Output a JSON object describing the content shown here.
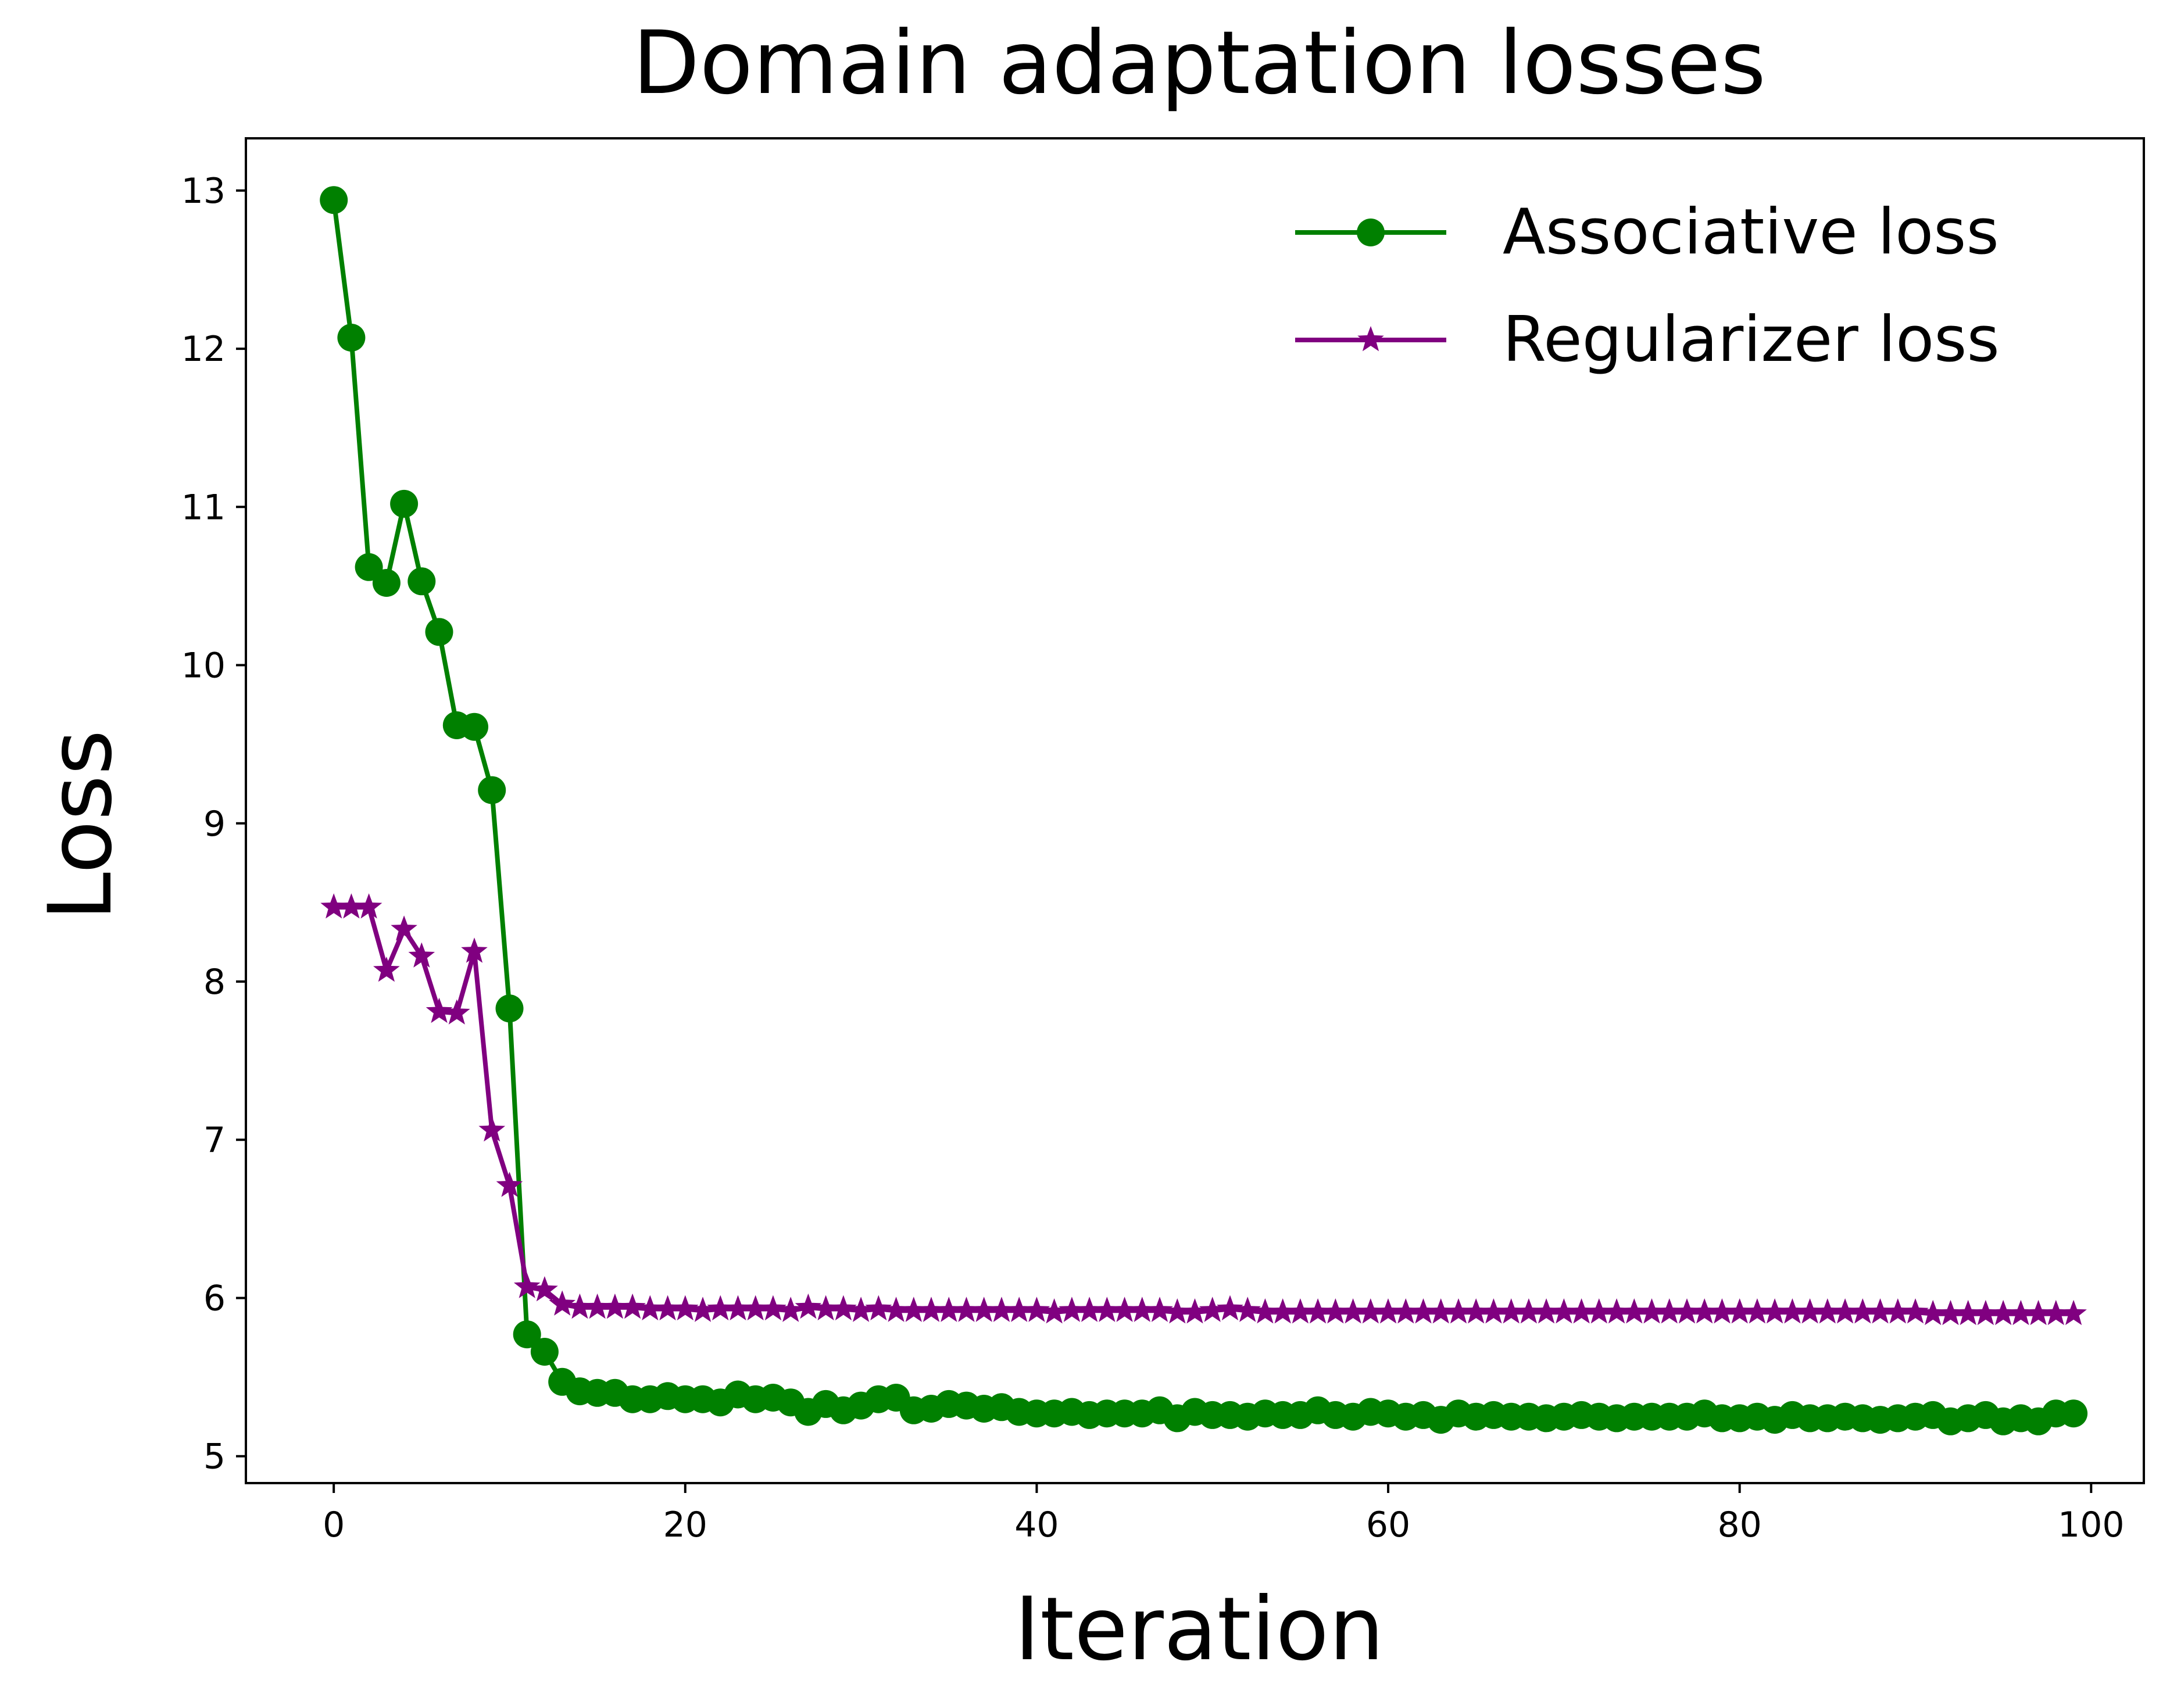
{
  "chart_data": {
    "type": "line",
    "title": "Domain adaptation losses",
    "xlabel": "Iteration",
    "ylabel": "Loss",
    "xlim": [
      -5,
      103
    ],
    "ylim": [
      4.83,
      13.33
    ],
    "xticks": [
      0,
      20,
      40,
      60,
      80,
      100
    ],
    "xtick_labels": [
      "0",
      "20",
      "40",
      "60",
      "80",
      "100"
    ],
    "yticks": [
      5,
      6,
      7,
      8,
      9,
      10,
      11,
      12,
      13
    ],
    "ytick_labels": [
      "5",
      "6",
      "7",
      "8",
      "9",
      "10",
      "11",
      "12",
      "13"
    ],
    "grid": false,
    "legend_position": "top-right",
    "series": [
      {
        "name": "Associative loss",
        "color": "#008000",
        "marker": "circle",
        "x": [
          0,
          1,
          2,
          3,
          4,
          5,
          6,
          7,
          8,
          9,
          10,
          11,
          12,
          13,
          14,
          15,
          16,
          17,
          18,
          19,
          20,
          21,
          22,
          23,
          24,
          25,
          26,
          27,
          28,
          29,
          30,
          31,
          32,
          33,
          34,
          35,
          36,
          37,
          38,
          39,
          40,
          41,
          42,
          43,
          44,
          45,
          46,
          47,
          48,
          49,
          50,
          51,
          52,
          53,
          54,
          55,
          56,
          57,
          58,
          59,
          60,
          61,
          62,
          63,
          64,
          65,
          66,
          67,
          68,
          69,
          70,
          71,
          72,
          73,
          74,
          75,
          76,
          77,
          78,
          79,
          80,
          81,
          82,
          83,
          84,
          85,
          86,
          87,
          88,
          89,
          90,
          91,
          92,
          93,
          94,
          95,
          96,
          97,
          98,
          99
        ],
        "values": [
          12.94,
          12.07,
          10.62,
          10.52,
          11.02,
          10.53,
          10.21,
          9.62,
          9.61,
          9.21,
          7.83,
          5.77,
          5.66,
          5.47,
          5.41,
          5.4,
          5.4,
          5.36,
          5.36,
          5.38,
          5.36,
          5.36,
          5.34,
          5.39,
          5.36,
          5.37,
          5.34,
          5.28,
          5.33,
          5.29,
          5.32,
          5.36,
          5.37,
          5.29,
          5.3,
          5.33,
          5.32,
          5.3,
          5.31,
          5.28,
          5.27,
          5.27,
          5.28,
          5.26,
          5.27,
          5.27,
          5.27,
          5.29,
          5.24,
          5.28,
          5.26,
          5.26,
          5.25,
          5.27,
          5.26,
          5.26,
          5.29,
          5.26,
          5.25,
          5.28,
          5.27,
          5.25,
          5.26,
          5.23,
          5.27,
          5.25,
          5.26,
          5.25,
          5.25,
          5.24,
          5.25,
          5.26,
          5.25,
          5.24,
          5.25,
          5.25,
          5.25,
          5.25,
          5.27,
          5.24,
          5.24,
          5.25,
          5.23,
          5.26,
          5.24,
          5.24,
          5.25,
          5.24,
          5.23,
          5.24,
          5.25,
          5.26,
          5.22,
          5.24,
          5.26,
          5.22,
          5.24,
          5.22,
          5.27,
          5.27
        ]
      },
      {
        "name": "Regularizer loss",
        "color": "#800080",
        "marker": "star",
        "x": [
          0,
          1,
          2,
          3,
          4,
          5,
          6,
          7,
          8,
          9,
          10,
          11,
          12,
          13,
          14,
          15,
          16,
          17,
          18,
          19,
          20,
          21,
          22,
          23,
          24,
          25,
          26,
          27,
          28,
          29,
          30,
          31,
          32,
          33,
          34,
          35,
          36,
          37,
          38,
          39,
          40,
          41,
          42,
          43,
          44,
          45,
          46,
          47,
          48,
          49,
          50,
          51,
          52,
          53,
          54,
          55,
          56,
          57,
          58,
          59,
          60,
          61,
          62,
          63,
          64,
          65,
          66,
          67,
          68,
          69,
          70,
          71,
          72,
          73,
          74,
          75,
          76,
          77,
          78,
          79,
          80,
          81,
          82,
          83,
          84,
          85,
          86,
          87,
          88,
          89,
          90,
          91,
          92,
          93,
          94,
          95,
          96,
          97,
          98,
          99
        ],
        "values": [
          8.47,
          8.47,
          8.47,
          8.07,
          8.33,
          8.16,
          7.81,
          7.8,
          8.19,
          7.06,
          6.71,
          6.07,
          6.05,
          5.96,
          5.94,
          5.94,
          5.94,
          5.94,
          5.93,
          5.93,
          5.93,
          5.92,
          5.93,
          5.93,
          5.93,
          5.93,
          5.92,
          5.94,
          5.93,
          5.93,
          5.92,
          5.93,
          5.92,
          5.92,
          5.92,
          5.92,
          5.92,
          5.92,
          5.92,
          5.92,
          5.92,
          5.91,
          5.92,
          5.92,
          5.92,
          5.92,
          5.92,
          5.92,
          5.91,
          5.91,
          5.92,
          5.93,
          5.92,
          5.91,
          5.91,
          5.91,
          5.91,
          5.91,
          5.91,
          5.91,
          5.91,
          5.91,
          5.91,
          5.91,
          5.91,
          5.91,
          5.91,
          5.91,
          5.91,
          5.91,
          5.91,
          5.91,
          5.91,
          5.91,
          5.91,
          5.91,
          5.91,
          5.91,
          5.91,
          5.91,
          5.91,
          5.91,
          5.91,
          5.91,
          5.91,
          5.91,
          5.91,
          5.91,
          5.91,
          5.91,
          5.91,
          5.9,
          5.9,
          5.9,
          5.9,
          5.9,
          5.9,
          5.9,
          5.9,
          5.9
        ]
      }
    ]
  }
}
